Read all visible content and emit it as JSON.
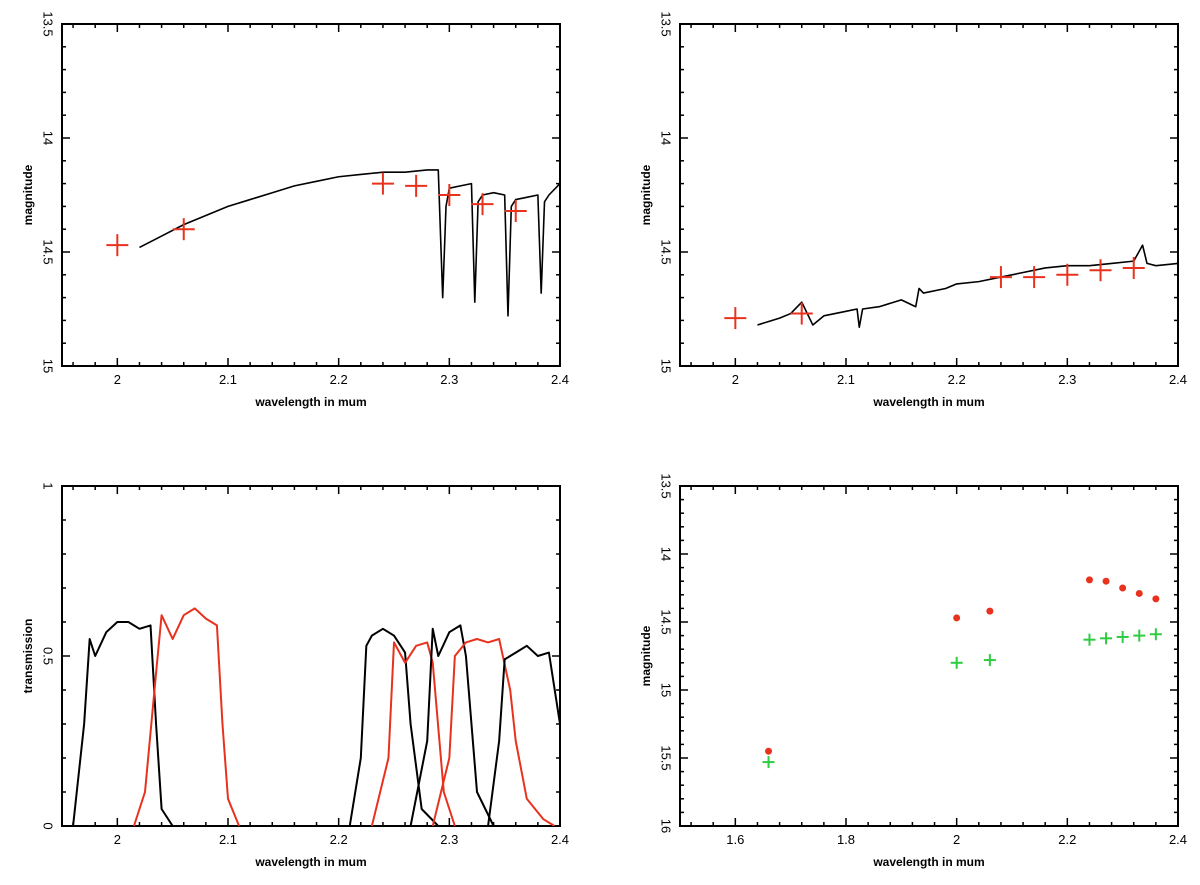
{
  "chart_data": [
    {
      "type": "line",
      "panel": "top-left",
      "xlabel": "wavelength in mum",
      "ylabel": "magnitude",
      "xlim": [
        1.95,
        2.4
      ],
      "ylim": [
        15,
        13.5
      ],
      "y_inverted": true,
      "xticks": [
        2,
        2.1,
        2.2,
        2.3,
        2.4
      ],
      "xtick_labels": [
        "2",
        "2.1",
        "2.2",
        "2.3",
        "2.4"
      ],
      "yticks": [
        13.5,
        14,
        14.5,
        15
      ],
      "ytick_labels": [
        "13.5",
        "14",
        "14.5",
        "15"
      ],
      "grid": false,
      "series": [
        {
          "kind": "spectrum",
          "color": "#000000",
          "x": [
            2.02,
            2.04,
            2.06,
            2.08,
            2.1,
            2.12,
            2.14,
            2.16,
            2.18,
            2.2,
            2.22,
            2.24,
            2.26,
            2.28,
            2.29,
            2.294,
            2.297,
            2.3,
            2.31,
            2.32,
            2.323,
            2.326,
            2.33,
            2.34,
            2.35,
            2.353,
            2.356,
            2.36,
            2.37,
            2.38,
            2.383,
            2.386,
            2.39,
            2.4
          ],
          "y": [
            14.48,
            14.43,
            14.38,
            14.34,
            14.3,
            14.27,
            14.24,
            14.21,
            14.19,
            14.17,
            14.16,
            14.15,
            14.15,
            14.14,
            14.14,
            14.7,
            14.3,
            14.22,
            14.21,
            14.2,
            14.72,
            14.28,
            14.25,
            14.24,
            14.25,
            14.78,
            14.3,
            14.27,
            14.26,
            14.25,
            14.68,
            14.28,
            14.25,
            14.2
          ]
        },
        {
          "kind": "markers",
          "marker": "+",
          "color": "#e8321e",
          "x": [
            2.0,
            2.06,
            2.24,
            2.27,
            2.3,
            2.33,
            2.36
          ],
          "y": [
            14.47,
            14.4,
            14.2,
            14.21,
            14.25,
            14.29,
            14.32
          ]
        }
      ]
    },
    {
      "type": "line",
      "panel": "top-right",
      "xlabel": "wavelength in mum",
      "ylabel": "magnitude",
      "xlim": [
        1.95,
        2.4
      ],
      "ylim": [
        15,
        13.5
      ],
      "y_inverted": true,
      "xticks": [
        2,
        2.1,
        2.2,
        2.3,
        2.4
      ],
      "xtick_labels": [
        "2",
        "2.1",
        "2.2",
        "2.3",
        "2.4"
      ],
      "yticks": [
        13.5,
        14,
        14.5,
        15
      ],
      "ytick_labels": [
        "13.5",
        "14",
        "14.5",
        "15"
      ],
      "grid": false,
      "series": [
        {
          "kind": "spectrum",
          "color": "#000000",
          "x": [
            2.02,
            2.04,
            2.05,
            2.06,
            2.07,
            2.08,
            2.1,
            2.11,
            2.112,
            2.115,
            2.13,
            2.15,
            2.163,
            2.166,
            2.17,
            2.19,
            2.2,
            2.22,
            2.24,
            2.26,
            2.28,
            2.3,
            2.32,
            2.34,
            2.36,
            2.368,
            2.372,
            2.38,
            2.4
          ],
          "y": [
            14.82,
            14.79,
            14.77,
            14.72,
            14.82,
            14.78,
            14.76,
            14.75,
            14.83,
            14.75,
            14.74,
            14.71,
            14.74,
            14.66,
            14.68,
            14.66,
            14.64,
            14.63,
            14.61,
            14.59,
            14.57,
            14.56,
            14.56,
            14.55,
            14.54,
            14.47,
            14.55,
            14.56,
            14.55
          ]
        },
        {
          "kind": "markers",
          "marker": "+",
          "color": "#e8321e",
          "x": [
            2.0,
            2.06,
            2.24,
            2.27,
            2.3,
            2.33,
            2.36
          ],
          "y": [
            14.79,
            14.77,
            14.61,
            14.61,
            14.6,
            14.58,
            14.57
          ]
        }
      ]
    },
    {
      "type": "line",
      "panel": "bottom-left",
      "xlabel": "wavelength in mum",
      "ylabel": "transmission",
      "xlim": [
        1.95,
        2.4
      ],
      "ylim": [
        0,
        1
      ],
      "y_inverted": false,
      "xticks": [
        2,
        2.1,
        2.2,
        2.3,
        2.4
      ],
      "xtick_labels": [
        "2",
        "2.1",
        "2.2",
        "2.3",
        "2.4"
      ],
      "yticks": [
        0,
        0.5,
        1
      ],
      "ytick_labels": [
        "0",
        "0.5",
        "1"
      ],
      "grid": false,
      "series": [
        {
          "kind": "filter",
          "color": "#000000",
          "x": [
            1.96,
            1.97,
            1.975,
            1.98,
            1.99,
            2.0,
            2.01,
            2.02,
            2.03,
            2.035,
            2.04,
            2.05
          ],
          "y": [
            0.0,
            0.3,
            0.55,
            0.5,
            0.57,
            0.6,
            0.6,
            0.58,
            0.59,
            0.3,
            0.05,
            0.0
          ]
        },
        {
          "kind": "filter",
          "color": "#e8321e",
          "x": [
            2.015,
            2.025,
            2.035,
            2.04,
            2.05,
            2.06,
            2.07,
            2.08,
            2.09,
            2.095,
            2.1,
            2.11
          ],
          "y": [
            0.0,
            0.1,
            0.45,
            0.62,
            0.55,
            0.62,
            0.64,
            0.61,
            0.59,
            0.3,
            0.08,
            0.0
          ]
        },
        {
          "kind": "filter",
          "color": "#000000",
          "x": [
            2.21,
            2.22,
            2.225,
            2.23,
            2.24,
            2.25,
            2.26,
            2.265,
            2.275,
            2.29
          ],
          "y": [
            0.0,
            0.2,
            0.53,
            0.56,
            0.58,
            0.56,
            0.51,
            0.3,
            0.05,
            0.0
          ]
        },
        {
          "kind": "filter",
          "color": "#e8321e",
          "x": [
            2.23,
            2.245,
            2.25,
            2.26,
            2.27,
            2.28,
            2.285,
            2.295,
            2.305
          ],
          "y": [
            0.0,
            0.2,
            0.54,
            0.48,
            0.53,
            0.54,
            0.48,
            0.1,
            0.0
          ]
        },
        {
          "kind": "filter",
          "color": "#000000",
          "x": [
            2.265,
            2.28,
            2.285,
            2.29,
            2.3,
            2.31,
            2.315,
            2.325,
            2.34
          ],
          "y": [
            0.0,
            0.25,
            0.58,
            0.5,
            0.57,
            0.59,
            0.5,
            0.1,
            0.0
          ]
        },
        {
          "kind": "filter",
          "color": "#e8321e",
          "x": [
            2.285,
            2.3,
            2.305,
            2.315,
            2.325,
            2.335,
            2.345,
            2.355,
            2.36,
            2.37,
            2.385,
            2.395
          ],
          "y": [
            0.0,
            0.2,
            0.5,
            0.54,
            0.55,
            0.54,
            0.55,
            0.4,
            0.25,
            0.08,
            0.02,
            0.0
          ]
        },
        {
          "kind": "filter",
          "color": "#000000",
          "x": [
            2.335,
            2.345,
            2.35,
            2.36,
            2.37,
            2.38,
            2.39,
            2.4
          ],
          "y": [
            0.0,
            0.25,
            0.49,
            0.51,
            0.53,
            0.5,
            0.51,
            0.3
          ]
        }
      ]
    },
    {
      "type": "scatter",
      "panel": "bottom-right",
      "xlabel": "wavelength in mum",
      "ylabel": "magnitude",
      "xlim": [
        1.5,
        2.4
      ],
      "ylim": [
        16,
        13.5
      ],
      "y_inverted": true,
      "xticks": [
        1.6,
        1.8,
        2,
        2.2,
        2.4
      ],
      "xtick_labels": [
        "1.6",
        "1.8",
        "2",
        "2.2",
        "2.4"
      ],
      "yticks": [
        13.5,
        14,
        14.5,
        15,
        15.5,
        16
      ],
      "ytick_labels": [
        "13.5",
        "14",
        "14.5",
        "15",
        "15.5",
        "16"
      ],
      "grid": false,
      "series": [
        {
          "kind": "markers",
          "marker": "dot",
          "color": "#e8321e",
          "x": [
            1.66,
            2.0,
            2.06,
            2.24,
            2.27,
            2.3,
            2.33,
            2.36
          ],
          "y": [
            15.45,
            14.47,
            14.42,
            14.19,
            14.2,
            14.25,
            14.29,
            14.33
          ]
        },
        {
          "kind": "markers",
          "marker": "+",
          "color": "#2ecc40",
          "x": [
            1.66,
            2.0,
            2.06,
            2.24,
            2.27,
            2.3,
            2.33,
            2.36
          ],
          "y": [
            15.53,
            14.8,
            14.78,
            14.63,
            14.62,
            14.61,
            14.6,
            14.59
          ]
        }
      ]
    }
  ]
}
